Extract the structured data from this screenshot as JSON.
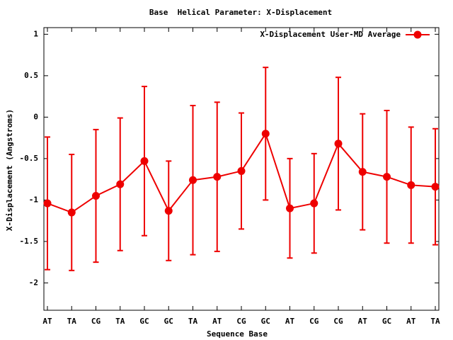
{
  "chart_data": {
    "type": "line",
    "title": "Base  Helical Parameter: X-Displacement",
    "x_label": "Sequence Base",
    "y_label": "X-Displacement (Angstroms)",
    "categories": [
      "AT",
      "TA",
      "CG",
      "TA",
      "GC",
      "GC",
      "TA",
      "AT",
      "CG",
      "GC",
      "AT",
      "CG",
      "CG",
      "AT",
      "GC",
      "AT",
      "TA"
    ],
    "series": [
      {
        "name": "X-Displacement User-MD Average",
        "color": "#ee0000",
        "values": [
          -1.04,
          -1.15,
          -0.95,
          -0.81,
          -0.53,
          -1.13,
          -0.76,
          -0.72,
          -0.65,
          -0.2,
          -1.1,
          -1.04,
          -0.32,
          -0.66,
          -0.72,
          -0.82,
          -0.84
        ],
        "errors": [
          0.8,
          0.7,
          0.8,
          0.8,
          0.9,
          0.6,
          0.9,
          0.9,
          0.7,
          0.8,
          0.6,
          0.6,
          0.8,
          0.7,
          0.8,
          0.7,
          0.7
        ]
      }
    ],
    "ylim": [
      -2.33,
      1.08
    ],
    "yticks": [
      1,
      0.5,
      0,
      -0.5,
      -1,
      -1.5,
      -2
    ],
    "legend": "top-right"
  }
}
